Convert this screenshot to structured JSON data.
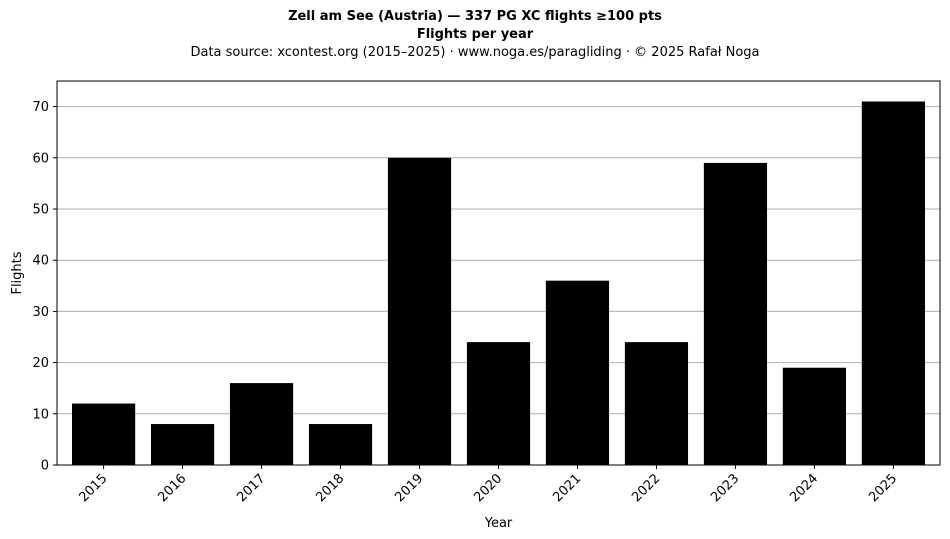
{
  "chart_data": {
    "type": "bar",
    "title": "Zell am See (Austria)  —  337 PG XC flights ≥100 pts",
    "subtitle": "Flights per year",
    "source_note": "Data source: xcontest.org (2015–2025)  ·  www.noga.es/paragliding  ·  © 2025 Rafał Noga",
    "xlabel": "Year",
    "ylabel": "Flights",
    "categories": [
      "2015",
      "2016",
      "2017",
      "2018",
      "2019",
      "2020",
      "2021",
      "2022",
      "2023",
      "2024",
      "2025"
    ],
    "values": [
      12,
      8,
      16,
      8,
      60,
      24,
      36,
      24,
      59,
      19,
      71
    ],
    "ylim": [
      0,
      75
    ],
    "yticks": [
      0,
      10,
      20,
      30,
      40,
      50,
      60,
      70
    ],
    "grid": "y",
    "bar_color": "#000000",
    "grid_color": "#b0b0b0"
  }
}
